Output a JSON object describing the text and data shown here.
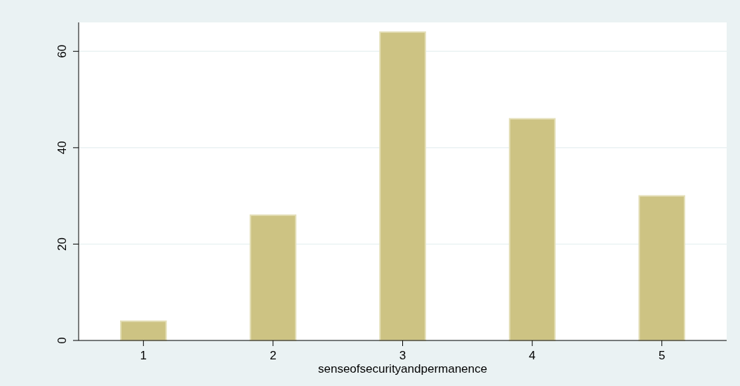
{
  "chart_data": {
    "type": "bar",
    "xlabel": "senseofsecurityandpermanence",
    "categories": [
      "1",
      "2",
      "3",
      "4",
      "5"
    ],
    "values": [
      4,
      26,
      64,
      46,
      30
    ],
    "color": "#cdc383",
    "ylim": [
      0,
      66
    ],
    "yticks": [
      0,
      20,
      40,
      60
    ],
    "grid": "y"
  }
}
